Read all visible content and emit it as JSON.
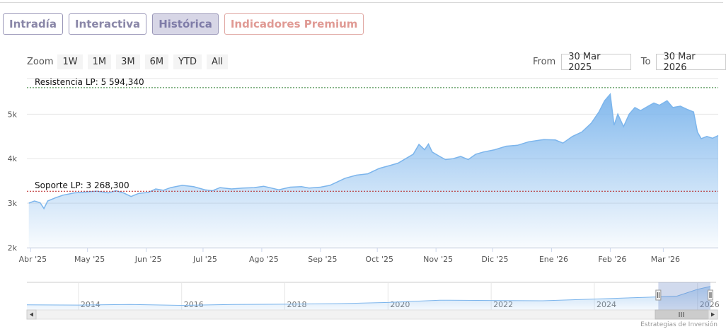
{
  "tabs": [
    {
      "label": "Intradía",
      "active": false
    },
    {
      "label": "Interactiva",
      "active": false
    },
    {
      "label": "Histórica",
      "active": true
    },
    {
      "label": "Indicadores Premium",
      "active": false
    }
  ],
  "range_selector": {
    "zoom_label": "Zoom",
    "buttons": [
      "1W",
      "1M",
      "3M",
      "6M",
      "YTD",
      "All"
    ],
    "from_label": "From",
    "from_value": "30 Mar 2025",
    "to_label": "To",
    "to_value": "30 Mar 2026"
  },
  "credit": "Estrategias de Inversión",
  "colors": {
    "series_line": "#7cb5ec",
    "resistance_line": "#2e7d32",
    "support_line": "#b71c1c",
    "tab_border": "#9a97b8",
    "premium_border": "#e0a7a2"
  },
  "chart_data": {
    "type": "area",
    "title": "",
    "xlabel": "",
    "ylabel": "",
    "ylim": [
      2000,
      5800
    ],
    "y_ticks": [
      {
        "label": "2k",
        "value": 2000
      },
      {
        "label": "3k",
        "value": 3000
      },
      {
        "label": "4k",
        "value": 4000
      },
      {
        "label": "5k",
        "value": 5000
      }
    ],
    "x_range": [
      "2025-03-30",
      "2026-03-30"
    ],
    "x_ticks": [
      {
        "label": "Abr '25",
        "date": "2025-04-01"
      },
      {
        "label": "May '25",
        "date": "2025-05-01"
      },
      {
        "label": "Jun '25",
        "date": "2025-06-01"
      },
      {
        "label": "Jul '25",
        "date": "2025-07-01"
      },
      {
        "label": "Ago '25",
        "date": "2025-08-01"
      },
      {
        "label": "Sep '25",
        "date": "2025-09-01"
      },
      {
        "label": "Oct '25",
        "date": "2025-10-01"
      },
      {
        "label": "Nov '25",
        "date": "2025-11-01"
      },
      {
        "label": "Dic '25",
        "date": "2025-12-01"
      },
      {
        "label": "Ene '26",
        "date": "2026-01-01"
      },
      {
        "label": "Feb '26",
        "date": "2026-02-01"
      },
      {
        "label": "Mar '26",
        "date": "2026-03-01"
      }
    ],
    "plot_lines": [
      {
        "label": "Resistencia LP: 5 594,340",
        "value": 5594.34,
        "color": "#2e7d32"
      },
      {
        "label": "Soporte LP: 3 268,300",
        "value": 3268.3,
        "color": "#b71c1c"
      }
    ],
    "grid": true,
    "legend": "none",
    "series": [
      {
        "points": [
          [
            "2025-03-31",
            3000
          ],
          [
            "2025-04-03",
            3050
          ],
          [
            "2025-04-06",
            3010
          ],
          [
            "2025-04-08",
            2880
          ],
          [
            "2025-04-10",
            3050
          ],
          [
            "2025-04-14",
            3120
          ],
          [
            "2025-04-18",
            3180
          ],
          [
            "2025-04-24",
            3230
          ],
          [
            "2025-04-30",
            3250
          ],
          [
            "2025-05-06",
            3270
          ],
          [
            "2025-05-12",
            3230
          ],
          [
            "2025-05-16",
            3280
          ],
          [
            "2025-05-20",
            3230
          ],
          [
            "2025-05-24",
            3150
          ],
          [
            "2025-05-28",
            3220
          ],
          [
            "2025-06-02",
            3240
          ],
          [
            "2025-06-06",
            3320
          ],
          [
            "2025-06-10",
            3290
          ],
          [
            "2025-06-14",
            3350
          ],
          [
            "2025-06-20",
            3400
          ],
          [
            "2025-06-26",
            3370
          ],
          [
            "2025-07-02",
            3300
          ],
          [
            "2025-07-06",
            3280
          ],
          [
            "2025-07-10",
            3350
          ],
          [
            "2025-07-16",
            3320
          ],
          [
            "2025-07-22",
            3340
          ],
          [
            "2025-07-28",
            3350
          ],
          [
            "2025-08-02",
            3380
          ],
          [
            "2025-08-06",
            3340
          ],
          [
            "2025-08-10",
            3300
          ],
          [
            "2025-08-16",
            3360
          ],
          [
            "2025-08-22",
            3370
          ],
          [
            "2025-08-26",
            3340
          ],
          [
            "2025-09-01",
            3360
          ],
          [
            "2025-09-06",
            3400
          ],
          [
            "2025-09-10",
            3480
          ],
          [
            "2025-09-14",
            3560
          ],
          [
            "2025-09-20",
            3630
          ],
          [
            "2025-09-26",
            3660
          ],
          [
            "2025-10-02",
            3780
          ],
          [
            "2025-10-08",
            3850
          ],
          [
            "2025-10-12",
            3900
          ],
          [
            "2025-10-16",
            4000
          ],
          [
            "2025-10-20",
            4100
          ],
          [
            "2025-10-23",
            4320
          ],
          [
            "2025-10-26",
            4200
          ],
          [
            "2025-10-28",
            4330
          ],
          [
            "2025-10-30",
            4150
          ],
          [
            "2025-11-03",
            4050
          ],
          [
            "2025-11-06",
            3980
          ],
          [
            "2025-11-10",
            4000
          ],
          [
            "2025-11-14",
            4050
          ],
          [
            "2025-11-18",
            3980
          ],
          [
            "2025-11-22",
            4100
          ],
          [
            "2025-11-26",
            4150
          ],
          [
            "2025-12-02",
            4200
          ],
          [
            "2025-12-08",
            4280
          ],
          [
            "2025-12-14",
            4300
          ],
          [
            "2025-12-20",
            4380
          ],
          [
            "2025-12-28",
            4430
          ],
          [
            "2026-01-03",
            4420
          ],
          [
            "2026-01-07",
            4350
          ],
          [
            "2026-01-12",
            4500
          ],
          [
            "2026-01-17",
            4600
          ],
          [
            "2026-01-22",
            4800
          ],
          [
            "2026-01-26",
            5050
          ],
          [
            "2026-01-29",
            5300
          ],
          [
            "2026-02-01",
            5450
          ],
          [
            "2026-02-03",
            4750
          ],
          [
            "2026-02-05",
            5000
          ],
          [
            "2026-02-08",
            4720
          ],
          [
            "2026-02-11",
            5000
          ],
          [
            "2026-02-14",
            5150
          ],
          [
            "2026-02-17",
            5080
          ],
          [
            "2026-02-21",
            5180
          ],
          [
            "2026-02-24",
            5250
          ],
          [
            "2026-02-27",
            5200
          ],
          [
            "2026-03-03",
            5300
          ],
          [
            "2026-03-06",
            5150
          ],
          [
            "2026-03-10",
            5180
          ],
          [
            "2026-03-14",
            5100
          ],
          [
            "2026-03-17",
            5050
          ],
          [
            "2026-03-19",
            4600
          ],
          [
            "2026-03-21",
            4450
          ],
          [
            "2026-03-24",
            4500
          ],
          [
            "2026-03-27",
            4460
          ],
          [
            "2026-03-30",
            4520
          ]
        ]
      }
    ],
    "navigator": {
      "year_labels": [
        "2014",
        "2016",
        "2018",
        "2020",
        "2022",
        "2024",
        "2026"
      ],
      "series": [
        {
          "year": 2013.0,
          "value": 2100
        },
        {
          "year": 2014.0,
          "value": 2050
        },
        {
          "year": 2015.0,
          "value": 2150
        },
        {
          "year": 2016.0,
          "value": 2000
        },
        {
          "year": 2017.0,
          "value": 2150
        },
        {
          "year": 2018.0,
          "value": 2200
        },
        {
          "year": 2019.0,
          "value": 2300
        },
        {
          "year": 2020.0,
          "value": 2500
        },
        {
          "year": 2021.0,
          "value": 2900
        },
        {
          "year": 2022.0,
          "value": 2850
        },
        {
          "year": 2023.0,
          "value": 2800
        },
        {
          "year": 2024.0,
          "value": 3100
        },
        {
          "year": 2025.0,
          "value": 3400
        },
        {
          "year": 2025.6,
          "value": 3600
        },
        {
          "year": 2026.0,
          "value": 4800
        },
        {
          "year": 2026.25,
          "value": 5300
        }
      ],
      "selection": [
        "2025-03-30",
        "2026-03-30"
      ]
    }
  }
}
